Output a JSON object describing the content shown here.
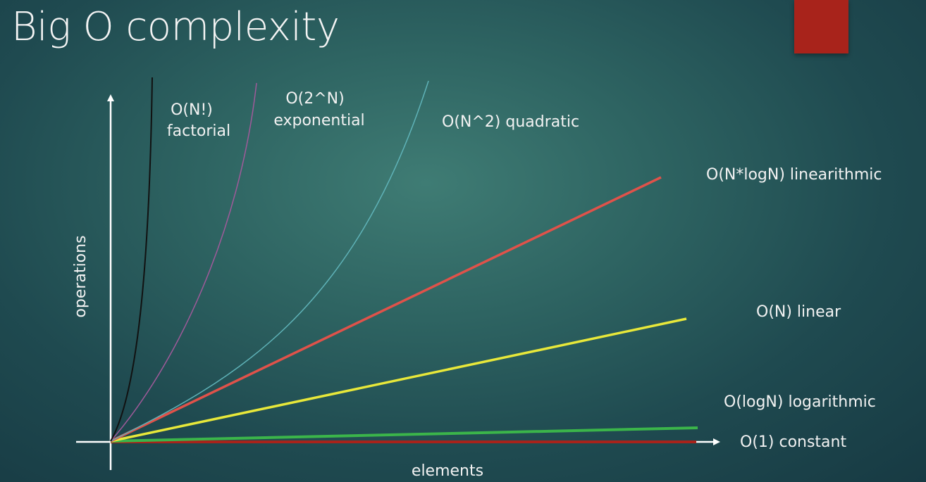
{
  "title": "Big O complexity",
  "accent_color": "#a8231b",
  "axes": {
    "x_label": "elements",
    "y_label": "operations"
  },
  "curves": [
    {
      "name": "factorial",
      "label_lines": [
        "O(N!)",
        "factorial"
      ],
      "color": "#111111"
    },
    {
      "name": "exponential",
      "label_lines": [
        "O(2^N)",
        "exponential"
      ],
      "color": "#a05a9a"
    },
    {
      "name": "quadratic",
      "label_lines": [
        "O(N^2) quadratic"
      ],
      "color": "#5fb3b8"
    },
    {
      "name": "linearithmic",
      "label_lines": [
        "O(N*logN) linearithmic"
      ],
      "color": "#e0524a"
    },
    {
      "name": "linear",
      "label_lines": [
        "O(N) linear"
      ],
      "color": "#e8e83a"
    },
    {
      "name": "logarithmic",
      "label_lines": [
        "O(logN) logarithmic"
      ],
      "color": "#3bb54a"
    },
    {
      "name": "constant",
      "label_lines": [
        "O(1) constant"
      ],
      "color": "#a8231b"
    }
  ]
}
